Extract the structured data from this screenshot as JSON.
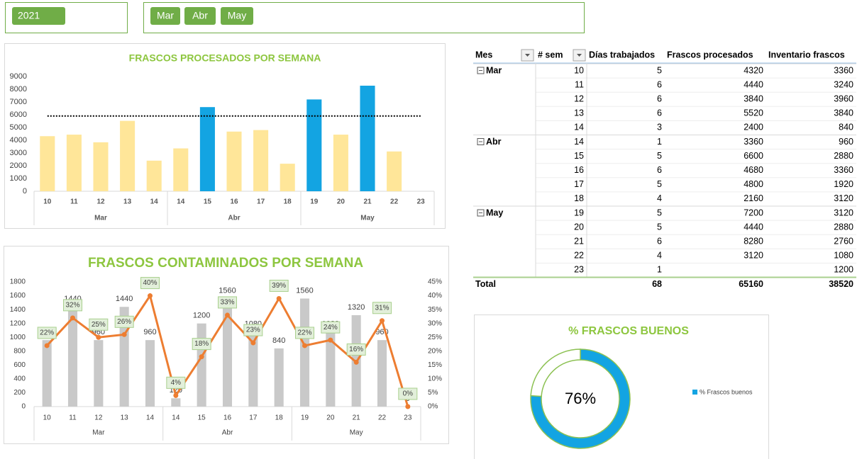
{
  "slicers": {
    "year": {
      "items": [
        "2021"
      ]
    },
    "month": {
      "items": [
        "Mar",
        "Abr",
        "May"
      ]
    }
  },
  "chart_data": [
    {
      "type": "bar",
      "title": "FRASCOS PROCESADOS POR SEMANA",
      "groups": [
        {
          "name": "Mar",
          "categories": [
            "10",
            "11",
            "12",
            "13",
            "14"
          ],
          "values": [
            4320,
            4440,
            3840,
            5520,
            2400
          ],
          "colors": [
            "#ffe699",
            "#ffe699",
            "#ffe699",
            "#ffe699",
            "#ffe699"
          ]
        },
        {
          "name": "Abr",
          "categories": [
            "14",
            "15",
            "16",
            "17",
            "18"
          ],
          "values": [
            3360,
            6600,
            4680,
            4800,
            2160
          ],
          "colors": [
            "#ffe699",
            "#13a4e2",
            "#ffe699",
            "#ffe699",
            "#ffe699"
          ]
        },
        {
          "name": "May",
          "categories": [
            "19",
            "20",
            "21",
            "22",
            "23"
          ],
          "values": [
            7200,
            4440,
            8280,
            3120,
            null
          ],
          "colors": [
            "#13a4e2",
            "#ffe699",
            "#13a4e2",
            "#ffe699",
            "#ffe699"
          ]
        }
      ],
      "reference_line": 5900,
      "ylim": [
        0,
        9000
      ],
      "yticks": [
        0,
        1000,
        2000,
        3000,
        4000,
        5000,
        6000,
        7000,
        8000,
        9000
      ]
    },
    {
      "type": "bar_line",
      "title": "FRASCOS CONTAMINADOS POR SEMANA",
      "groups": [
        {
          "name": "Mar",
          "categories": [
            "10",
            "11",
            "12",
            "13",
            "14"
          ],
          "bars": [
            960,
            1440,
            960,
            1440,
            960
          ],
          "line": [
            22,
            32,
            25,
            26,
            40
          ],
          "line_labels": [
            "22%",
            "32%",
            "25%",
            "26%",
            "40%"
          ]
        },
        {
          "name": "Abr",
          "categories": [
            "14",
            "15",
            "16",
            "17",
            "18"
          ],
          "bars": [
            120,
            1200,
            1560,
            1080,
            840
          ],
          "line": [
            4,
            18,
            33,
            23,
            39
          ],
          "line_labels": [
            "4%",
            "18%",
            "33%",
            "23%",
            "39%"
          ]
        },
        {
          "name": "May",
          "categories": [
            "19",
            "20",
            "21",
            "22",
            "23"
          ],
          "bars": [
            1560,
            1080,
            1320,
            960,
            0
          ],
          "line": [
            22,
            24,
            16,
            31,
            0
          ],
          "line_labels": [
            "22%",
            "24%",
            "16%",
            "31%",
            "0%"
          ]
        }
      ],
      "bar_color": "#c9c9c9",
      "line_color": "#ed7d31",
      "ylim": [
        0,
        1800
      ],
      "yticks": [
        0,
        200,
        400,
        600,
        800,
        1000,
        1200,
        1400,
        1600,
        1800
      ],
      "y2lim": [
        0,
        45
      ],
      "y2ticks": [
        {
          "value": 0,
          "label": "0%"
        },
        {
          "value": 5,
          "label": "5%"
        },
        {
          "value": 10,
          "label": "10%"
        },
        {
          "value": 15,
          "label": "15%"
        },
        {
          "value": 20,
          "label": "20%"
        },
        {
          "value": 25,
          "label": "25%"
        },
        {
          "value": 30,
          "label": "30%"
        },
        {
          "value": 35,
          "label": "35%"
        },
        {
          "value": 40,
          "label": "40%"
        },
        {
          "value": 45,
          "label": "45%"
        }
      ]
    },
    {
      "type": "donut",
      "title": "% FRASCOS BUENOS",
      "legend": "% Frascos buenos",
      "values": [
        76,
        24
      ],
      "value_labels": [
        "76%",
        null
      ],
      "colors": [
        "#13a4e2",
        "#ffffff"
      ]
    }
  ],
  "table": {
    "columns": [
      "Mes",
      "# sem",
      "Días trabajados",
      "Frascos procesados",
      "Inventario frascos"
    ],
    "groups": [
      {
        "name": "Mar",
        "rows": [
          [
            10,
            5,
            4320,
            3360
          ],
          [
            11,
            6,
            4440,
            3240
          ],
          [
            12,
            6,
            3840,
            3960
          ],
          [
            13,
            6,
            5520,
            3840
          ],
          [
            14,
            3,
            2400,
            840
          ]
        ]
      },
      {
        "name": "Abr",
        "rows": [
          [
            14,
            1,
            3360,
            960
          ],
          [
            15,
            5,
            6600,
            2880
          ],
          [
            16,
            6,
            4680,
            3360
          ],
          [
            17,
            5,
            4800,
            1920
          ],
          [
            18,
            4,
            2160,
            3120
          ]
        ]
      },
      {
        "name": "May",
        "rows": [
          [
            19,
            5,
            7200,
            3120
          ],
          [
            20,
            5,
            4440,
            2880
          ],
          [
            21,
            6,
            8280,
            2760
          ],
          [
            22,
            4,
            3120,
            1080
          ],
          [
            23,
            1,
            null,
            1200
          ]
        ]
      }
    ],
    "total": {
      "label": "Total",
      "values": [
        68,
        65160,
        38520
      ]
    }
  }
}
